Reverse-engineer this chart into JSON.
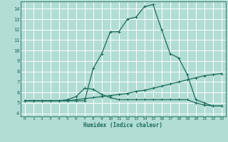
{
  "xlabel": "Humidex (Indice chaleur)",
  "background_color": "#b2ddd4",
  "grid_color": "#ffffff",
  "line_color": "#1a6b5a",
  "xlim": [
    -0.5,
    23.5
  ],
  "ylim": [
    3.7,
    14.7
  ],
  "xticks": [
    0,
    1,
    2,
    3,
    4,
    5,
    6,
    7,
    8,
    9,
    10,
    11,
    12,
    13,
    14,
    15,
    16,
    17,
    18,
    19,
    20,
    21,
    22,
    23
  ],
  "yticks": [
    4,
    5,
    6,
    7,
    8,
    9,
    10,
    11,
    12,
    13,
    14
  ],
  "curve1_x": [
    0,
    1,
    2,
    3,
    4,
    5,
    6,
    7,
    8,
    9,
    10,
    11,
    12,
    13,
    14,
    15,
    16,
    17,
    18,
    19,
    20,
    21,
    22,
    23
  ],
  "curve1_y": [
    5.2,
    5.2,
    5.2,
    5.2,
    5.2,
    5.2,
    5.3,
    5.4,
    5.5,
    5.6,
    5.7,
    5.8,
    5.9,
    6.1,
    6.2,
    6.4,
    6.6,
    6.8,
    7.0,
    7.2,
    7.4,
    7.6,
    7.7,
    7.8
  ],
  "curve2_x": [
    0,
    1,
    2,
    3,
    4,
    5,
    6,
    7,
    8,
    9,
    10,
    11,
    12,
    13,
    14,
    15,
    16,
    17,
    18,
    19,
    20,
    21,
    22,
    23
  ],
  "curve2_y": [
    5.2,
    5.2,
    5.2,
    5.2,
    5.2,
    5.3,
    5.6,
    6.4,
    6.3,
    5.8,
    5.5,
    5.3,
    5.3,
    5.3,
    5.3,
    5.3,
    5.3,
    5.3,
    5.3,
    5.3,
    5.0,
    4.8,
    4.7,
    4.7
  ],
  "curve3_x": [
    0,
    1,
    2,
    3,
    4,
    5,
    6,
    7,
    8,
    9,
    10,
    11,
    12,
    13,
    14,
    15,
    16,
    17,
    18,
    19,
    20,
    21,
    22,
    23
  ],
  "curve3_y": [
    5.2,
    5.2,
    5.2,
    5.2,
    5.2,
    5.2,
    5.2,
    5.2,
    8.3,
    9.7,
    11.8,
    11.8,
    13.0,
    13.2,
    14.2,
    14.4,
    12.0,
    9.7,
    9.3,
    7.7,
    5.3,
    5.0,
    4.7,
    4.7
  ]
}
